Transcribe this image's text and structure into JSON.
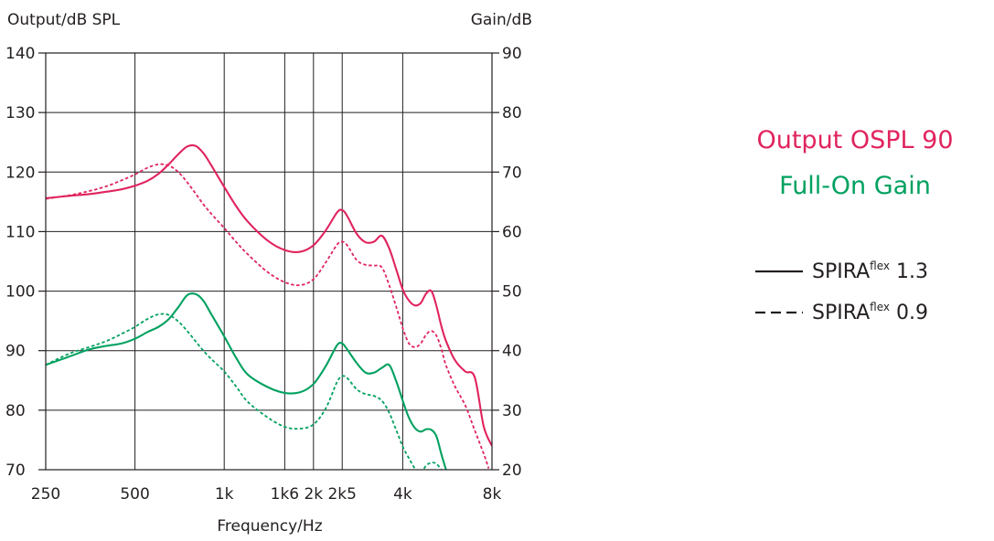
{
  "chart_data": {
    "type": "line",
    "title": "",
    "xlabel": "Frequency/Hz",
    "ylabel": "Output/dB SPL",
    "ylabel_right": "Gain/dB",
    "x_scale": "log",
    "xlim": [
      250,
      8000
    ],
    "ylim": [
      70,
      140
    ],
    "ylim_right": [
      20,
      90
    ],
    "x_ticks": [
      {
        "value": 250,
        "label": "250"
      },
      {
        "value": 500,
        "label": "500"
      },
      {
        "value": 1000,
        "label": "1k"
      },
      {
        "value": 1600,
        "label": "1k6"
      },
      {
        "value": 2000,
        "label": "2k"
      },
      {
        "value": 2500,
        "label": "2k5"
      },
      {
        "value": 4000,
        "label": "4k"
      },
      {
        "value": 8000,
        "label": "8k"
      }
    ],
    "y_ticks": [
      70,
      80,
      90,
      100,
      110,
      120,
      130,
      140
    ],
    "y_ticks_right": [
      20,
      30,
      40,
      50,
      60,
      70,
      80,
      90
    ],
    "grid": true,
    "series": [
      {
        "name": "SPIRAflex 1.3",
        "group": "Output OSPL 90",
        "style": "solid",
        "color": "#e0245e",
        "x": [
          250,
          300,
          350,
          400,
          450,
          500,
          550,
          600,
          650,
          700,
          750,
          800,
          850,
          900,
          1000,
          1100,
          1200,
          1400,
          1600,
          1800,
          2000,
          2200,
          2400,
          2500,
          2600,
          2800,
          3000,
          3200,
          3400,
          3600,
          3800,
          4000,
          4200,
          4400,
          4600,
          4800,
          5000,
          5200,
          5400,
          5600,
          6000,
          6500,
          7000,
          7500,
          8000
        ],
        "y": [
          115.6,
          116.0,
          116.3,
          116.7,
          117.1,
          117.7,
          118.5,
          119.7,
          121.3,
          123.0,
          124.3,
          124.4,
          123.2,
          121.3,
          117.5,
          114.2,
          111.7,
          108.5,
          106.9,
          106.6,
          107.7,
          110.2,
          113.2,
          113.6,
          112.6,
          109.6,
          108.2,
          108.3,
          109.3,
          107.2,
          103.7,
          100.3,
          98.4,
          97.6,
          98.0,
          99.6,
          100.0,
          97.5,
          94.1,
          91.6,
          88.4,
          86.5,
          85.5,
          77.3,
          74.0
        ]
      },
      {
        "name": "SPIRAflex 0.9",
        "group": "Output OSPL 90",
        "style": "dashed",
        "color": "#e0245e",
        "x": [
          250,
          300,
          350,
          400,
          450,
          500,
          550,
          600,
          650,
          700,
          750,
          800,
          850,
          900,
          1000,
          1100,
          1200,
          1400,
          1600,
          1800,
          2000,
          2200,
          2400,
          2500,
          2600,
          2800,
          3000,
          3200,
          3400,
          3600,
          3800,
          4000,
          4200,
          4400,
          4600,
          4800,
          5000,
          5200,
          5400,
          5600,
          6000,
          6500,
          7000,
          7500,
          7800
        ],
        "y": [
          115.5,
          116.1,
          116.8,
          117.6,
          118.6,
          119.6,
          120.7,
          121.3,
          121.1,
          120.0,
          118.3,
          116.4,
          114.6,
          113.1,
          110.6,
          108.2,
          106.2,
          103.2,
          101.5,
          101.0,
          102.0,
          104.8,
          107.8,
          108.3,
          107.7,
          105.2,
          104.4,
          104.3,
          104.0,
          101.0,
          97.4,
          93.8,
          91.2,
          90.6,
          91.2,
          92.7,
          93.3,
          92.5,
          90.3,
          87.5,
          84.0,
          80.8,
          76.6,
          72.7,
          70.2
        ]
      },
      {
        "name": "SPIRAflex 1.3",
        "group": "Full-On Gain",
        "style": "solid",
        "color": "#00a160",
        "x": [
          250,
          300,
          350,
          400,
          450,
          500,
          550,
          600,
          650,
          700,
          750,
          800,
          850,
          900,
          1000,
          1100,
          1200,
          1400,
          1600,
          1800,
          2000,
          2200,
          2400,
          2500,
          2600,
          2800,
          3000,
          3200,
          3400,
          3600,
          3800,
          4000,
          4200,
          4400,
          4600,
          4800,
          5000,
          5200,
          5400,
          5600
        ],
        "y": [
          37.6,
          39.0,
          40.2,
          40.8,
          41.2,
          42.0,
          43.1,
          44.0,
          45.3,
          47.3,
          49.3,
          49.5,
          48.4,
          46.3,
          42.4,
          38.7,
          36.0,
          33.9,
          32.9,
          33.0,
          34.4,
          37.4,
          40.9,
          41.2,
          40.2,
          37.9,
          36.3,
          36.3,
          37.1,
          37.6,
          34.9,
          31.6,
          28.7,
          27.0,
          26.4,
          26.8,
          26.7,
          25.6,
          22.6,
          20.0
        ]
      },
      {
        "name": "SPIRAflex 0.9",
        "group": "Full-On Gain",
        "style": "dashed",
        "color": "#00a160",
        "x": [
          250,
          300,
          350,
          400,
          450,
          500,
          550,
          600,
          650,
          700,
          750,
          800,
          850,
          900,
          1000,
          1100,
          1200,
          1400,
          1600,
          1800,
          2000,
          2200,
          2400,
          2500,
          2600,
          2800,
          3000,
          3200,
          3400,
          3600,
          3800,
          4000,
          4200,
          4400,
          4600,
          4800,
          5000,
          5200,
          5400
        ],
        "y": [
          37.6,
          39.5,
          40.6,
          41.6,
          42.8,
          44.0,
          45.3,
          46.1,
          46.0,
          44.9,
          43.3,
          41.6,
          40.0,
          38.7,
          36.5,
          33.9,
          31.4,
          28.8,
          27.2,
          26.9,
          27.6,
          30.3,
          34.7,
          35.7,
          35.4,
          33.5,
          32.7,
          32.4,
          31.6,
          29.6,
          26.7,
          23.9,
          21.9,
          20.2,
          19.5,
          20.7,
          21.2,
          21.0,
          20.0
        ]
      }
    ]
  },
  "labels": {
    "left_axis_title": "Output/dB SPL",
    "right_axis_title": "Gain/dB",
    "x_axis_title": "Frequency/Hz"
  },
  "legend": {
    "title_output": "Output OSPL 90",
    "title_gain": "Full-On Gain",
    "color_output": "#e0245e",
    "color_gain": "#00a160",
    "items": [
      {
        "base": "SPIRA",
        "sup": "flex",
        "suffix": " 1.3",
        "style": "solid"
      },
      {
        "base": "SPIRA",
        "sup": "flex",
        "suffix": " 0.9",
        "style": "dashed"
      }
    ]
  }
}
